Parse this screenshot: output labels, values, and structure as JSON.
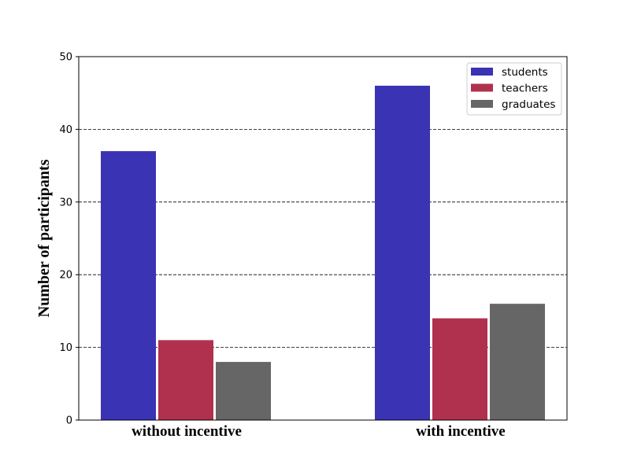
{
  "chart_data": {
    "type": "bar",
    "categories": [
      "without incentive",
      "with incentive"
    ],
    "series": [
      {
        "name": "students",
        "color": "#3a33b3",
        "values": [
          37,
          46
        ]
      },
      {
        "name": "teachers",
        "color": "#b0314d",
        "values": [
          11,
          14
        ]
      },
      {
        "name": "graduates",
        "color": "#666666",
        "values": [
          8,
          16
        ]
      }
    ],
    "title": "",
    "xlabel": "",
    "ylabel": "Number of participants",
    "ylim": [
      0,
      50
    ],
    "yticks": [
      0,
      10,
      20,
      30,
      40,
      50
    ],
    "grid": "horizontal dashed",
    "legend_position": "top-right"
  }
}
